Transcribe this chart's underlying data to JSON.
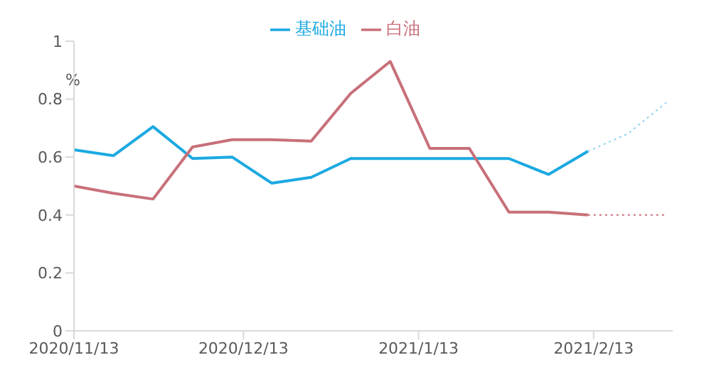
{
  "chart_data": {
    "type": "line",
    "ylabel": "%",
    "legend": "top",
    "grid": false,
    "marker": "none",
    "xlim": [
      "2020-11-13",
      "2021-02-27"
    ],
    "xticks": [
      {
        "value": "2020-11-13",
        "label": "2020/11/13"
      },
      {
        "value": "2020-12-13",
        "label": "2020/12/13"
      },
      {
        "value": "2021-01-13",
        "label": "2021/1/13"
      },
      {
        "value": "2021-02-13",
        "label": "2021/2/13"
      }
    ],
    "ylim": [
      0,
      1
    ],
    "yticks": [
      0,
      0.2,
      0.4,
      0.6,
      0.8,
      1
    ],
    "series": [
      {
        "name": "基础油",
        "color": "#1ba9e1",
        "x": [
          "2020-11-13",
          "2020-11-20",
          "2020-11-27",
          "2020-12-04",
          "2020-12-11",
          "2020-12-18",
          "2020-12-25",
          "2021-01-01",
          "2021-01-08",
          "2021-01-15",
          "2021-01-22",
          "2021-01-29",
          "2021-02-05",
          "2021-02-12"
        ],
        "values": [
          0.625,
          0.605,
          0.705,
          0.595,
          0.6,
          0.51,
          0.53,
          0.595,
          0.595,
          0.595,
          0.595,
          0.595,
          0.54,
          0.62
        ]
      },
      {
        "name": "白油",
        "color": "#c8707a",
        "x": [
          "2020-11-13",
          "2020-11-20",
          "2020-11-27",
          "2020-12-04",
          "2020-12-11",
          "2020-12-18",
          "2020-12-25",
          "2021-01-01",
          "2021-01-08",
          "2021-01-15",
          "2021-01-22",
          "2021-01-29",
          "2021-02-05",
          "2021-02-12"
        ],
        "values": [
          0.5,
          0.475,
          0.455,
          0.635,
          0.66,
          0.66,
          0.655,
          0.82,
          0.93,
          0.63,
          0.63,
          0.41,
          0.41,
          0.4
        ]
      },
      {
        "color": "#8fd3ef",
        "line_style": "dotted",
        "x": [
          "2021-02-12",
          "2021-02-19",
          "2021-02-26"
        ],
        "values": [
          0.62,
          0.68,
          0.79
        ]
      },
      {
        "color": "#c8707a",
        "line_style": "dotted",
        "x": [
          "2021-02-12",
          "2021-02-19",
          "2021-02-26"
        ],
        "values": [
          0.4,
          0.4,
          0.4
        ]
      }
    ]
  }
}
